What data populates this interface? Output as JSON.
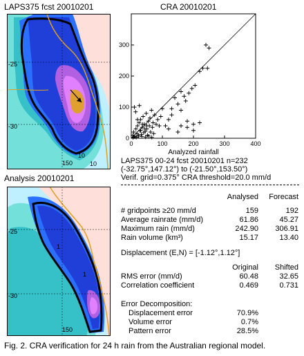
{
  "panels": {
    "forecast_title": "LAPS375 fcst 20010201",
    "analysis_title": "Analysis 20010201",
    "forecast_labels": [
      "-25",
      "-30",
      "150",
      "10",
      "10"
    ],
    "analysis_labels": [
      "-25",
      "-30",
      "150",
      "1",
      "1"
    ]
  },
  "scatter_title": "CRA 20010201",
  "chart_data": {
    "type": "scatter",
    "title": "CRA 20010201",
    "xlabel": "Analyzed rainfall",
    "ylabel": "",
    "xlim": [
      0,
      400
    ],
    "ylim": [
      0,
      400
    ],
    "x_ticks": [
      "0",
      "100",
      "200",
      "300",
      "400"
    ],
    "y_ticks": [
      "0",
      "100",
      "200",
      "300"
    ],
    "reference_line": "y = x",
    "marker": "+",
    "x": [
      5,
      8,
      12,
      15,
      18,
      20,
      22,
      25,
      28,
      30,
      32,
      35,
      38,
      40,
      42,
      45,
      48,
      50,
      52,
      55,
      58,
      60,
      62,
      65,
      68,
      70,
      72,
      75,
      80,
      85,
      90,
      95,
      100,
      10,
      14,
      20,
      26,
      30,
      36,
      44,
      50,
      6,
      9,
      16,
      24,
      34,
      46,
      56,
      66,
      110,
      120,
      130,
      140,
      150,
      160,
      170,
      175,
      185,
      195,
      205,
      220,
      230,
      240,
      245,
      250,
      120,
      150,
      160,
      180,
      200,
      180,
      200,
      220,
      130,
      160
    ],
    "y": [
      10,
      20,
      5,
      30,
      15,
      40,
      8,
      50,
      25,
      60,
      12,
      35,
      70,
      18,
      45,
      22,
      80,
      30,
      10,
      55,
      40,
      65,
      20,
      90,
      35,
      50,
      15,
      75,
      45,
      60,
      40,
      70,
      95,
      100,
      85,
      60,
      105,
      25,
      45,
      30,
      40,
      2,
      5,
      3,
      8,
      6,
      4,
      7,
      3,
      40,
      30,
      95,
      130,
      110,
      150,
      135,
      120,
      145,
      160,
      170,
      215,
      225,
      300,
      225,
      290,
      60,
      20,
      40,
      55,
      25,
      35,
      45,
      50,
      75,
      90
    ]
  },
  "stats": {
    "header": [
      "LAPS375 00-24 fcst 20010201   n=232",
      "(-32.75°,147.12°) to (-21.50°,153.50°)",
      "Verif. grid=0.375°   CRA threshold=20.0 mm/d"
    ],
    "columns": [
      "Analysed",
      "Forecast"
    ],
    "rows": [
      {
        "label": "# gridpoints ≥20 mm/d",
        "analysed": "159",
        "forecast": "192"
      },
      {
        "label": "Average rainrate (mm/d)",
        "analysed": "61.86",
        "forecast": "45.27"
      },
      {
        "label": "Maximum rain (mm/d)",
        "analysed": "242.90",
        "forecast": "306.91"
      },
      {
        "label": "Rain volume (km³)",
        "analysed": "15.17",
        "forecast": "13.40"
      }
    ],
    "displacement": "Displacement (E,N) = [-1.12°,1.12°]",
    "error_columns": [
      "Original",
      "Shifted"
    ],
    "error_rows": [
      {
        "label": "RMS error (mm/d)",
        "original": "60.48",
        "shifted": "32.65"
      },
      {
        "label": "Correlation coefficient",
        "original": "0.469",
        "shifted": "0.731"
      }
    ],
    "decomp_title": "Error Decomposition:",
    "decomp_rows": [
      {
        "label": "Displacement error",
        "value": "70.9%"
      },
      {
        "label": "Volume error",
        "value": "0.7%"
      },
      {
        "label": "Pattern error",
        "value": "28.5%"
      }
    ]
  },
  "caption": "Fig. 2. CRA verification for 24 h rain from the Australian regional model.",
  "colors": {
    "land": "#ffdfd9",
    "shade_1": "#bff0ff",
    "shade_2": "#74e0da",
    "shade_3": "#36c0c8",
    "shade_4": "#2b6fff",
    "shade_5": "#1f3fd8",
    "shade_6": "#b060e0",
    "shade_7": "#e080ff",
    "shade_8": "#e0a030",
    "coast": "#e0a020"
  }
}
